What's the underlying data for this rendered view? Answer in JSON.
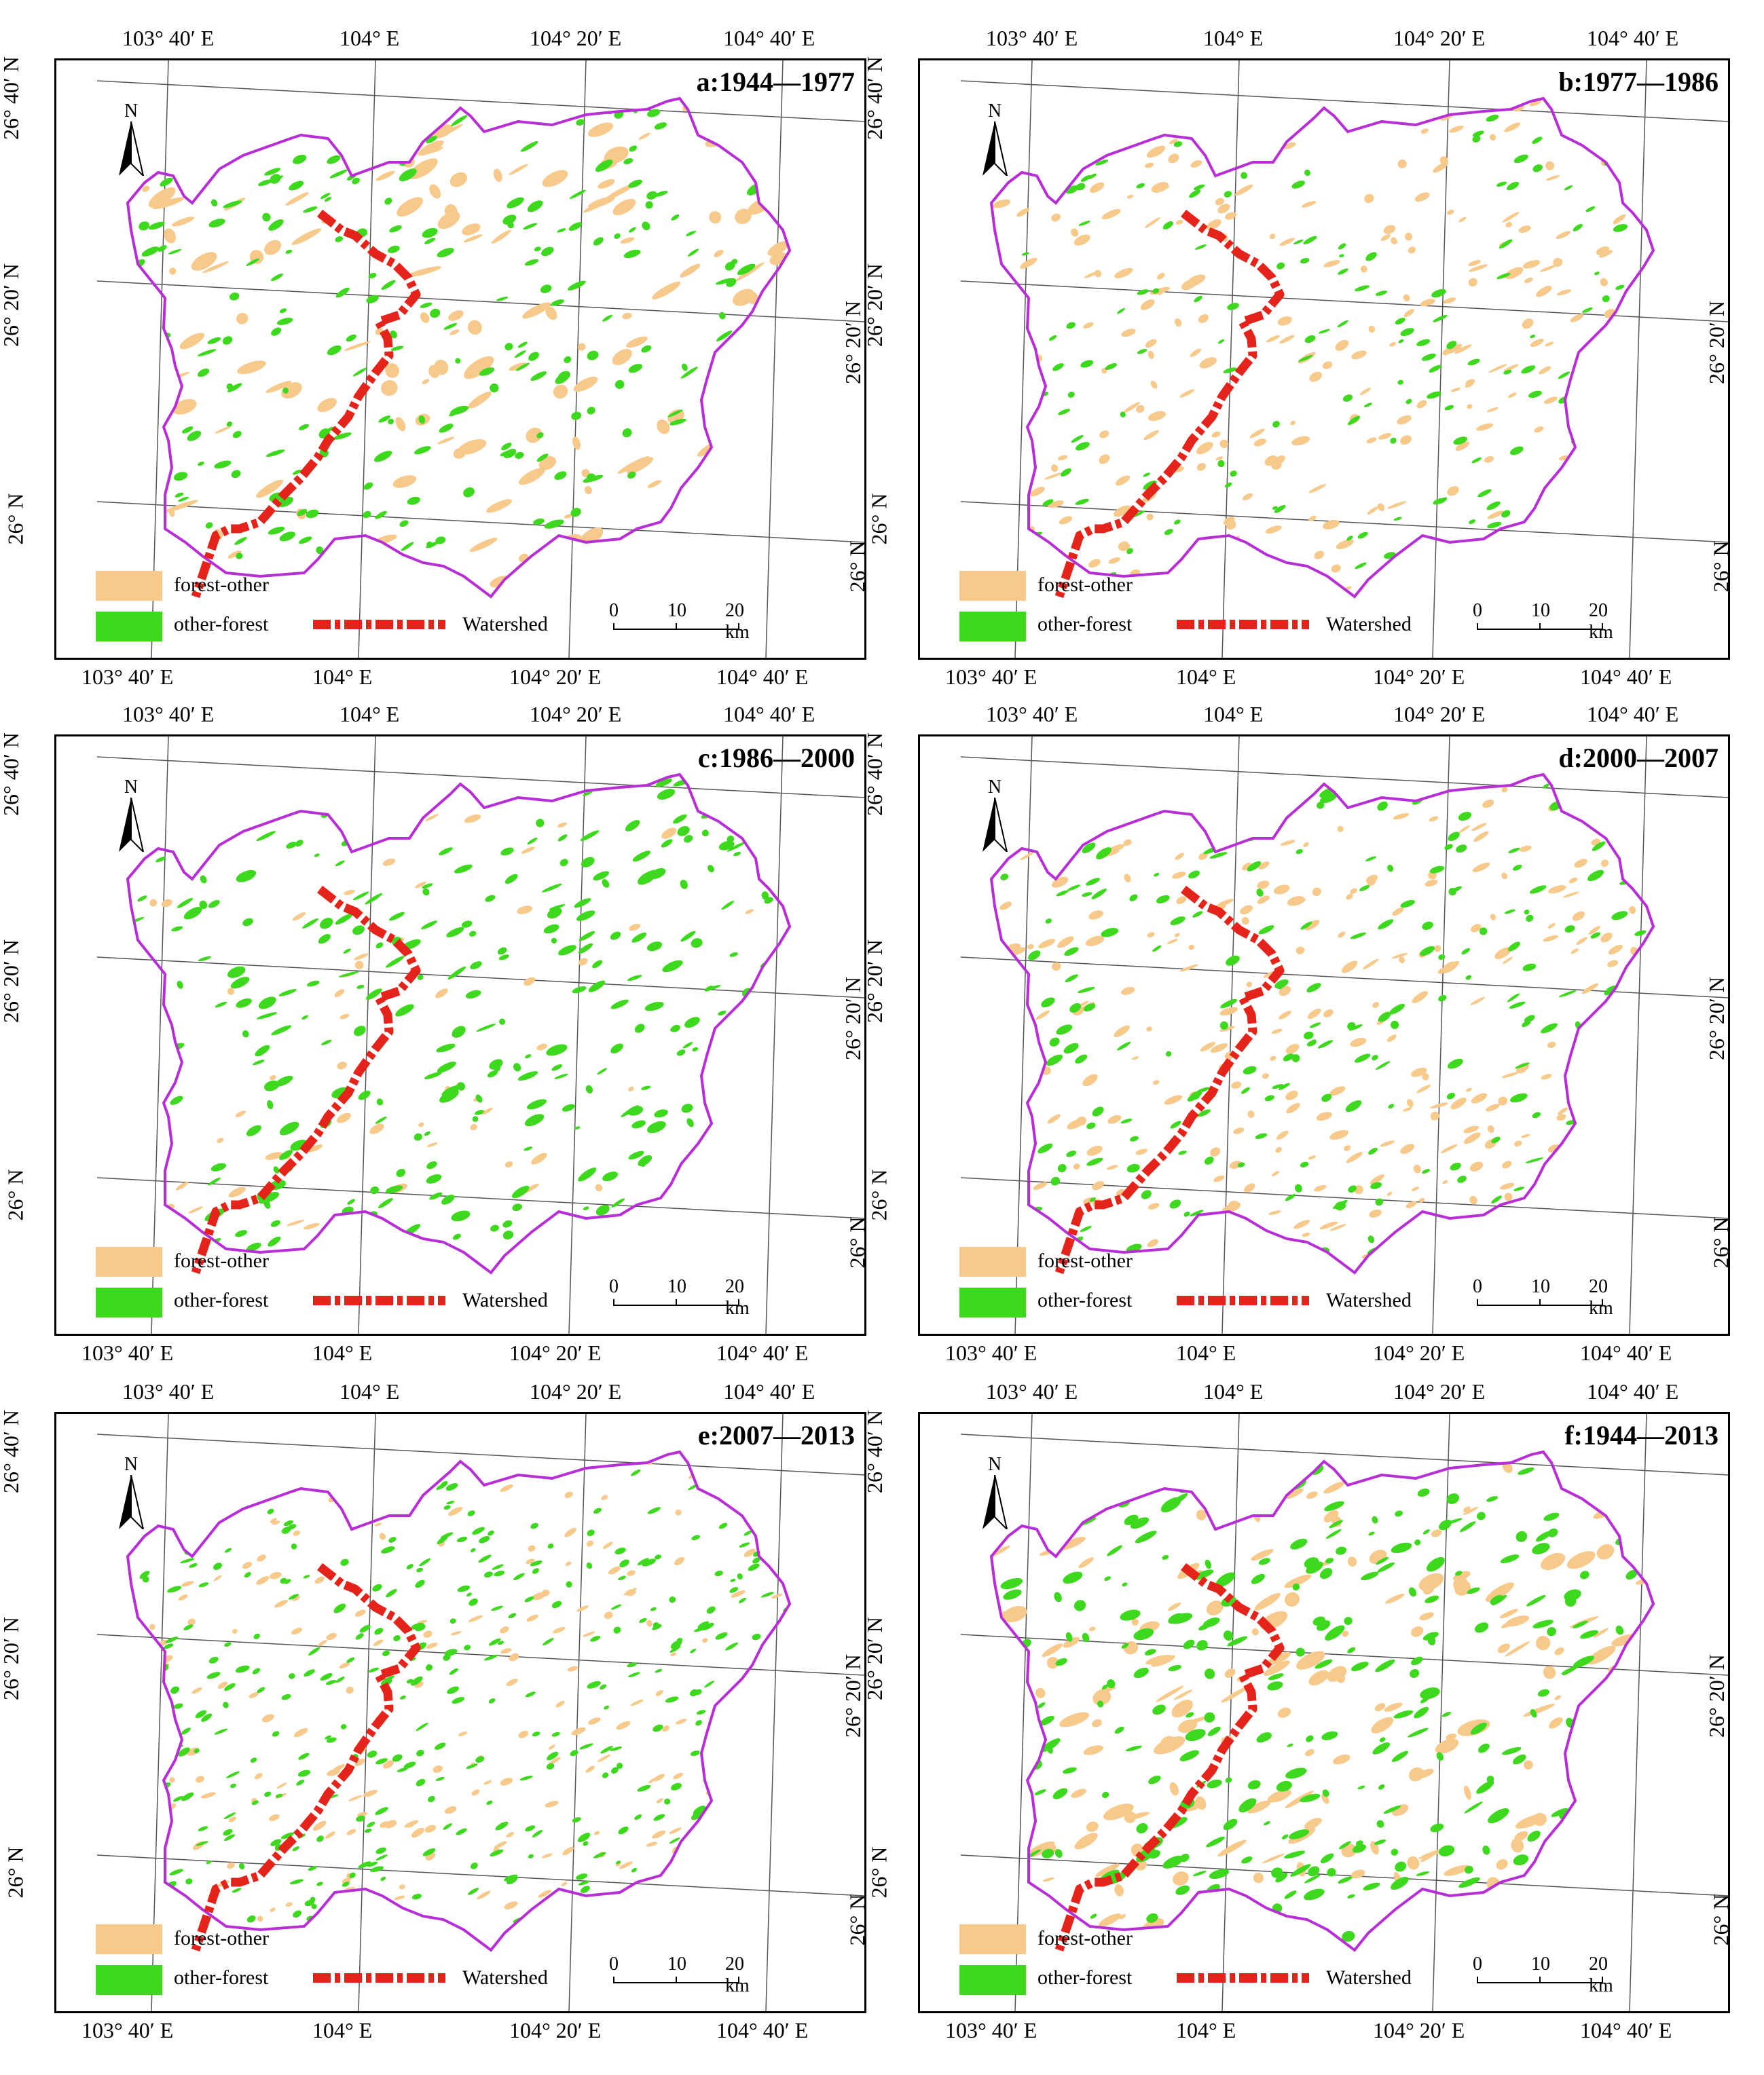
{
  "legend": {
    "forest_other": "forest-other",
    "other_forest": "other-forest",
    "watershed": "Watershed",
    "colors": {
      "forest_other": "#f7c98b",
      "other_forest": "#3ed81e",
      "watershed": "#e4231b",
      "boundary": "#b72ed6"
    }
  },
  "scale_bar": {
    "zero": "0",
    "ten": "10",
    "twenty": "20 km"
  },
  "north_arrow": {
    "label": "N"
  },
  "coords": {
    "lon_3": "103° 40′ E",
    "lon_4": "104° E",
    "lon_5": "104° 20′ E",
    "lon_6": "104° 40′ E",
    "lat_40": "26° 40′ N",
    "lat_20": "26° 20′ N",
    "lat_0": "26° N"
  },
  "panels": [
    {
      "title": "a:1944—1977"
    },
    {
      "title": "b:1977—1986"
    },
    {
      "title": "c:1986—2000"
    },
    {
      "title": "d:2000—2007"
    },
    {
      "title": "e:2007—2013"
    },
    {
      "title": "f:1944—2013"
    }
  ]
}
